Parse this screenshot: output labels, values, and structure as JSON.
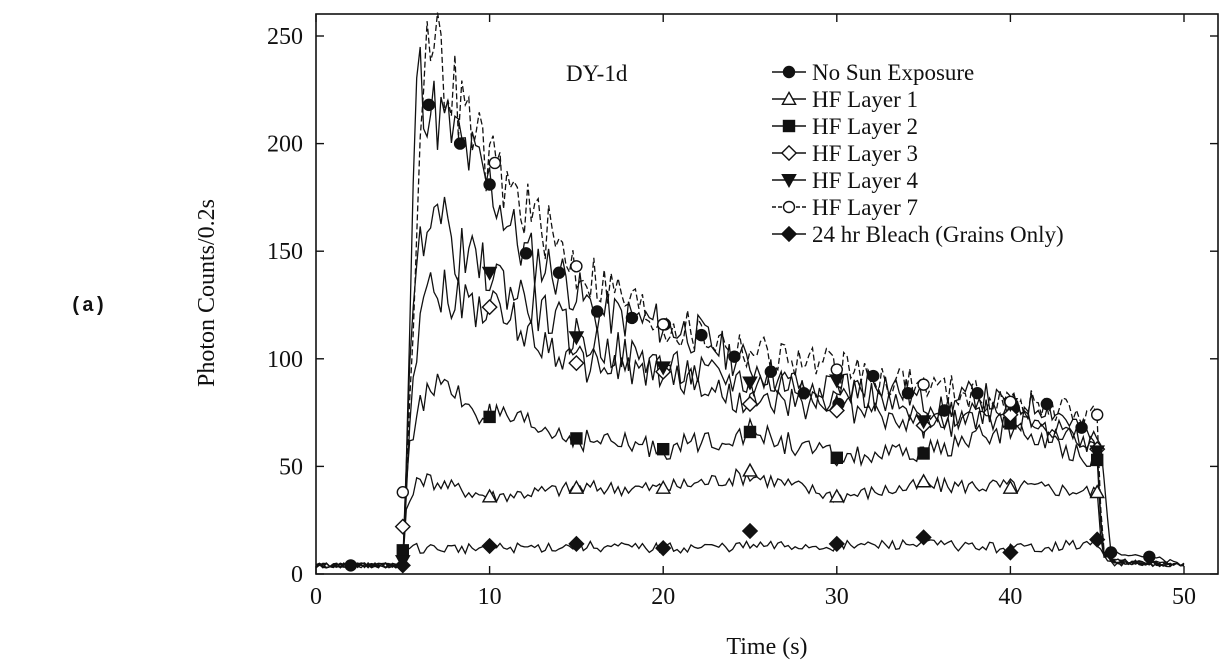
{
  "panel_label": "(a)",
  "chart_data": {
    "type": "line",
    "annotation": "DY-1d",
    "xlabel": "Time (s)",
    "ylabel": "Photon Counts/0.2s",
    "xlim": [
      0,
      52
    ],
    "ylim": [
      0,
      260
    ],
    "xticks": [
      0,
      10,
      20,
      30,
      40,
      50
    ],
    "yticks": [
      0,
      50,
      100,
      150,
      200,
      250
    ],
    "grid": false,
    "legend_position": "top-right",
    "series": [
      {
        "name": "No Sun Exposure",
        "marker": "circle-filled",
        "dash": "solid",
        "x": [
          0,
          2,
          4,
          5,
          5.1,
          5.8,
          6.5,
          8.3,
          10,
          12,
          14,
          16,
          18,
          20,
          22,
          24,
          26,
          28,
          30,
          32,
          34,
          36,
          38,
          40,
          42,
          44,
          45.2,
          45.8,
          46.5,
          48,
          50
        ],
        "y": [
          4,
          4,
          4,
          5,
          20,
          236,
          218,
          200,
          181,
          149,
          140,
          122,
          119,
          116,
          111,
          101,
          94,
          84,
          79,
          92,
          84,
          76,
          84,
          77,
          79,
          68,
          60,
          10,
          10,
          8,
          4
        ],
        "markers_x": [
          2,
          6.5,
          8.3,
          10,
          12.1,
          14,
          16.2,
          18.2,
          20.1,
          22.2,
          24.1,
          26.2,
          28.1,
          30.1,
          32.1,
          34.1,
          36.2,
          38.1,
          40.2,
          42.1,
          44.1,
          45.8,
          48
        ],
        "markers_y": [
          4,
          218,
          200,
          181,
          149,
          140,
          122,
          119,
          116,
          111,
          101,
          94,
          84,
          79,
          92,
          84,
          76,
          84,
          77,
          79,
          68,
          10,
          8
        ]
      },
      {
        "name": "HF Layer 1",
        "marker": "triangle-open",
        "dash": "solid",
        "x": [
          0,
          5,
          5.2,
          6,
          8,
          10,
          15,
          20,
          25,
          30,
          35,
          40,
          45,
          45.3,
          46,
          50
        ],
        "y": [
          4,
          4,
          30,
          45,
          40,
          36,
          40,
          40,
          46,
          36,
          41,
          41,
          38,
          8,
          6,
          4
        ],
        "markers_x": [
          10,
          15,
          20,
          25,
          30,
          35,
          40,
          45
        ],
        "markers_y": [
          36,
          40,
          40,
          48,
          36,
          43,
          40,
          38
        ]
      },
      {
        "name": "HF Layer 2",
        "marker": "square-filled",
        "dash": "solid",
        "x": [
          0,
          5,
          5.3,
          6.5,
          10,
          15,
          20,
          25,
          30,
          35,
          40,
          45,
          45.3,
          46,
          50
        ],
        "y": [
          4,
          4,
          60,
          90,
          73,
          63,
          58,
          66,
          54,
          56,
          68,
          53,
          10,
          6,
          4
        ],
        "markers_x": [
          5,
          10,
          15,
          20,
          25,
          30,
          35,
          40,
          45
        ],
        "markers_y": [
          11,
          73,
          63,
          58,
          66,
          54,
          56,
          70,
          53
        ]
      },
      {
        "name": "HF Layer 3",
        "marker": "diamond-open",
        "dash": "solid",
        "x": [
          0,
          5,
          5.4,
          6.2,
          8,
          10,
          15,
          20,
          25,
          30,
          35,
          40,
          45,
          45.3,
          46,
          50
        ],
        "y": [
          4,
          4,
          70,
          140,
          128,
          124,
          98,
          94,
          79,
          79,
          68,
          74,
          58,
          10,
          6,
          4
        ],
        "markers_x": [
          5,
          10,
          15,
          20,
          25,
          30,
          35,
          40,
          45
        ],
        "markers_y": [
          22,
          124,
          98,
          94,
          79,
          76,
          69,
          74,
          58
        ]
      },
      {
        "name": "HF Layer 4",
        "marker": "triangle-down-filled",
        "dash": "solid",
        "x": [
          0,
          5,
          5.5,
          6.5,
          8,
          10,
          15,
          20,
          25,
          30,
          35,
          40,
          45,
          45.3,
          46,
          50
        ],
        "y": [
          4,
          4,
          120,
          178,
          150,
          140,
          110,
          96,
          89,
          90,
          71,
          79,
          57,
          10,
          6,
          4
        ],
        "markers_x": [
          5,
          10,
          15,
          20,
          25,
          30,
          35,
          40,
          45
        ],
        "markers_y": [
          6,
          140,
          110,
          96,
          89,
          90,
          71,
          79,
          57
        ]
      },
      {
        "name": "HF Layer 7",
        "marker": "circle-open",
        "dash": "dashed",
        "x": [
          0,
          5,
          5.5,
          6.2,
          7,
          10,
          15,
          20,
          25,
          30,
          35,
          40,
          45,
          45.3,
          46,
          50
        ],
        "y": [
          4,
          4,
          100,
          244,
          240,
          190,
          143,
          117,
          104,
          95,
          88,
          80,
          74,
          10,
          6,
          4
        ],
        "markers_x": [
          5,
          10.3,
          15,
          20,
          30,
          35,
          40,
          45
        ],
        "markers_y": [
          38,
          191,
          143,
          116,
          95,
          88,
          80,
          74
        ]
      },
      {
        "name": "24 hr Bleach (Grains Only)",
        "marker": "diamond-filled",
        "dash": "solid",
        "x": [
          0,
          5,
          5.2,
          10,
          15,
          20,
          25,
          30,
          35,
          40,
          45,
          45.4,
          46,
          50
        ],
        "y": [
          4,
          4,
          12,
          12,
          13,
          12,
          13,
          13,
          14,
          12,
          14,
          8,
          5,
          4
        ],
        "markers_x": [
          5,
          10,
          15,
          20,
          25,
          30,
          35,
          40,
          45
        ],
        "markers_y": [
          4,
          13,
          14,
          12,
          20,
          14,
          17,
          10,
          16
        ]
      }
    ]
  }
}
